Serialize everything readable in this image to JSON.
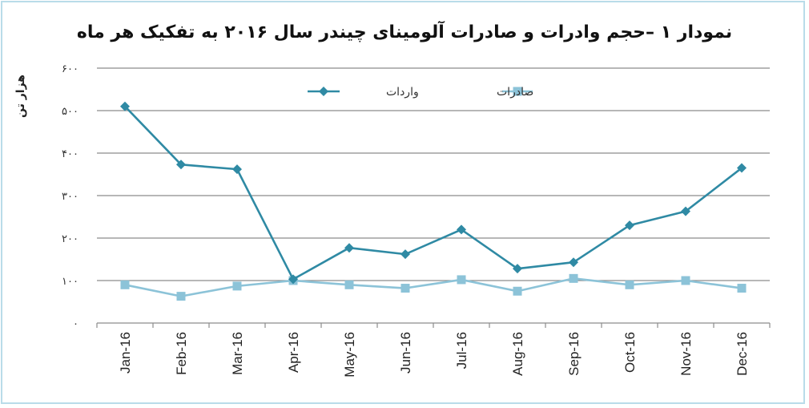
{
  "title": "نمودار ۱ –حجم وادرات و صادرات آلومینای چیندر سال ۲۰۱۶ به تفکیک هر ماه",
  "colors": {
    "imports": "#2f8aa4",
    "exports": "#8cc3d8",
    "grid": "#8c8c8c",
    "axis": "#8c8c8c"
  },
  "chart_data": {
    "type": "line",
    "title": "نمودار ۱ –حجم وادرات و صادرات آلومینای چیندر سال ۲۰۱۶ به تفکیک هر ماه",
    "ylabel": "هزار تن",
    "xlabel": "",
    "ylim": [
      0,
      600
    ],
    "yticks": [
      0,
      100,
      200,
      300,
      400,
      500,
      600
    ],
    "ytick_labels": [
      "۰",
      "۱۰۰",
      "۲۰۰",
      "۳۰۰",
      "۴۰۰",
      "۵۰۰",
      "۶۰۰"
    ],
    "categories": [
      "Jan-16",
      "Feb-16",
      "Mar-16",
      "Apr-16",
      "May-16",
      "Jun-16",
      "Jul-16",
      "Aug-16",
      "Sep-16",
      "Oct-16",
      "Nov-16",
      "Dec-16"
    ],
    "grid": true,
    "legend_position": "top",
    "series": [
      {
        "name": "واردات",
        "marker": "diamond",
        "color": "#2f8aa4",
        "values": [
          510,
          373,
          362,
          103,
          177,
          162,
          220,
          128,
          143,
          230,
          263,
          365
        ]
      },
      {
        "name": "صادرات",
        "marker": "square",
        "color": "#8cc3d8",
        "values": [
          90,
          63,
          87,
          100,
          90,
          82,
          102,
          75,
          105,
          90,
          100,
          82
        ]
      }
    ]
  }
}
